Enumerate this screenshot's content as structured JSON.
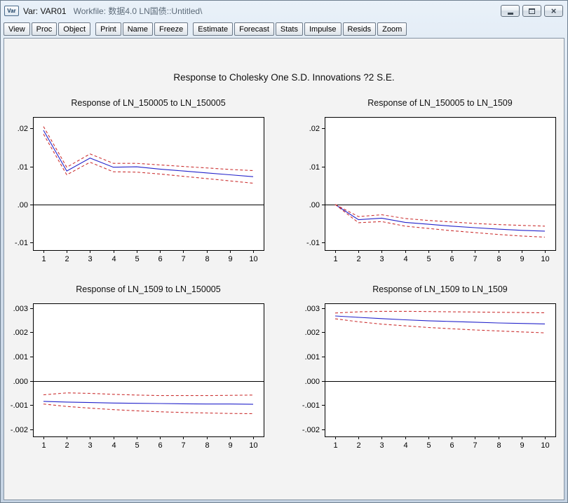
{
  "window": {
    "icon_label": "Var",
    "title_primary": "Var: VAR01",
    "title_secondary": "Workfile: 数据4.0 LN国债::Untitled\\",
    "close_glyph": "×"
  },
  "toolbar": {
    "groups": [
      [
        "View",
        "Proc",
        "Object"
      ],
      [
        "Print",
        "Name",
        "Freeze"
      ],
      [
        "Estimate",
        "Forecast",
        "Stats",
        "Impulse",
        "Resids",
        "Zoom"
      ]
    ]
  },
  "chart_title": "Response to Cholesky One S.D. Innovations ?2 S.E.",
  "chart_data": [
    {
      "type": "line",
      "title": "Response of LN_150005 to LN_150005",
      "x": [
        1,
        2,
        3,
        4,
        5,
        6,
        7,
        8,
        9,
        10
      ],
      "xlim": [
        0.55,
        10.45
      ],
      "ylim": [
        -0.012,
        0.023
      ],
      "yticks": [
        0.02,
        0.01,
        0.0,
        -0.01
      ],
      "ytick_labels": [
        ".02",
        ".01",
        ".00",
        "-.01"
      ],
      "zero_line": true,
      "grid": false,
      "legend": false,
      "series": [
        {
          "name": "response",
          "style": "solid",
          "color": "#2323cb",
          "values": [
            0.0195,
            0.0088,
            0.0122,
            0.0098,
            0.0099,
            0.0093,
            0.0088,
            0.0083,
            0.0078,
            0.0073
          ]
        },
        {
          "name": "upper-2se",
          "style": "dashed",
          "color": "#cc3333",
          "values": [
            0.0205,
            0.0098,
            0.0133,
            0.0108,
            0.0108,
            0.0104,
            0.01,
            0.0096,
            0.0092,
            0.0089
          ]
        },
        {
          "name": "lower-2se",
          "style": "dashed",
          "color": "#cc3333",
          "values": [
            0.0185,
            0.0078,
            0.0111,
            0.0086,
            0.0085,
            0.008,
            0.0074,
            0.0068,
            0.0062,
            0.0056
          ]
        }
      ]
    },
    {
      "type": "line",
      "title": "Response of LN_150005 to LN_1509",
      "x": [
        1,
        2,
        3,
        4,
        5,
        6,
        7,
        8,
        9,
        10
      ],
      "xlim": [
        0.55,
        10.45
      ],
      "ylim": [
        -0.012,
        0.023
      ],
      "yticks": [
        0.02,
        0.01,
        0.0,
        -0.01
      ],
      "ytick_labels": [
        ".02",
        ".01",
        ".00",
        "-.01"
      ],
      "zero_line": true,
      "grid": false,
      "legend": false,
      "series": [
        {
          "name": "response",
          "style": "solid",
          "color": "#2323cb",
          "values": [
            0.0,
            -0.004,
            -0.0036,
            -0.0047,
            -0.0052,
            -0.0057,
            -0.0061,
            -0.0065,
            -0.0068,
            -0.007
          ]
        },
        {
          "name": "upper-2se",
          "style": "dashed",
          "color": "#cc3333",
          "values": [
            0.0,
            -0.0032,
            -0.0027,
            -0.0037,
            -0.0042,
            -0.0046,
            -0.005,
            -0.0053,
            -0.0055,
            -0.0057
          ]
        },
        {
          "name": "lower-2se",
          "style": "dashed",
          "color": "#cc3333",
          "values": [
            0.0,
            -0.0048,
            -0.0045,
            -0.0057,
            -0.0063,
            -0.0069,
            -0.0074,
            -0.0079,
            -0.0083,
            -0.0086
          ]
        }
      ]
    },
    {
      "type": "line",
      "title": "Response of LN_1509 to LN_150005",
      "x": [
        1,
        2,
        3,
        4,
        5,
        6,
        7,
        8,
        9,
        10
      ],
      "xlim": [
        0.55,
        10.45
      ],
      "ylim": [
        -0.0023,
        0.0032
      ],
      "yticks": [
        0.003,
        0.002,
        0.001,
        0.0,
        -0.001,
        -0.002
      ],
      "ytick_labels": [
        ".003",
        ".002",
        ".001",
        ".000",
        "-.001",
        "-.002"
      ],
      "zero_line": true,
      "grid": false,
      "legend": false,
      "series": [
        {
          "name": "response",
          "style": "solid",
          "color": "#2323cb",
          "values": [
            -0.00085,
            -0.00088,
            -0.0009,
            -0.00092,
            -0.00093,
            -0.00094,
            -0.00095,
            -0.00096,
            -0.00096,
            -0.00097
          ]
        },
        {
          "name": "upper-2se",
          "style": "dashed",
          "color": "#cc3333",
          "values": [
            -0.00058,
            -0.0005,
            -0.00052,
            -0.00056,
            -0.00059,
            -0.00061,
            -0.00061,
            -0.00061,
            -0.0006,
            -0.00059
          ]
        },
        {
          "name": "lower-2se",
          "style": "dashed",
          "color": "#cc3333",
          "values": [
            -0.00096,
            -0.00106,
            -0.00113,
            -0.00119,
            -0.00124,
            -0.00128,
            -0.00131,
            -0.00133,
            -0.00135,
            -0.00136
          ]
        }
      ]
    },
    {
      "type": "line",
      "title": "Response of LN_1509 to LN_1509",
      "x": [
        1,
        2,
        3,
        4,
        5,
        6,
        7,
        8,
        9,
        10
      ],
      "xlim": [
        0.55,
        10.45
      ],
      "ylim": [
        -0.0023,
        0.0032
      ],
      "yticks": [
        0.003,
        0.002,
        0.001,
        0.0,
        -0.001,
        -0.002
      ],
      "ytick_labels": [
        ".003",
        ".002",
        ".001",
        ".000",
        "-.001",
        "-.002"
      ],
      "zero_line": true,
      "grid": false,
      "legend": false,
      "series": [
        {
          "name": "response",
          "style": "solid",
          "color": "#2323cb",
          "values": [
            0.00268,
            0.00262,
            0.00257,
            0.00252,
            0.00248,
            0.00245,
            0.00242,
            0.00239,
            0.00237,
            0.00235
          ]
        },
        {
          "name": "upper-2se",
          "style": "dashed",
          "color": "#cc3333",
          "values": [
            0.0028,
            0.00285,
            0.00287,
            0.00287,
            0.00286,
            0.00285,
            0.00284,
            0.00283,
            0.00282,
            0.00281
          ]
        },
        {
          "name": "lower-2se",
          "style": "dashed",
          "color": "#cc3333",
          "values": [
            0.00256,
            0.00244,
            0.00234,
            0.00227,
            0.0022,
            0.00215,
            0.0021,
            0.00206,
            0.00202,
            0.00198
          ]
        }
      ]
    }
  ]
}
